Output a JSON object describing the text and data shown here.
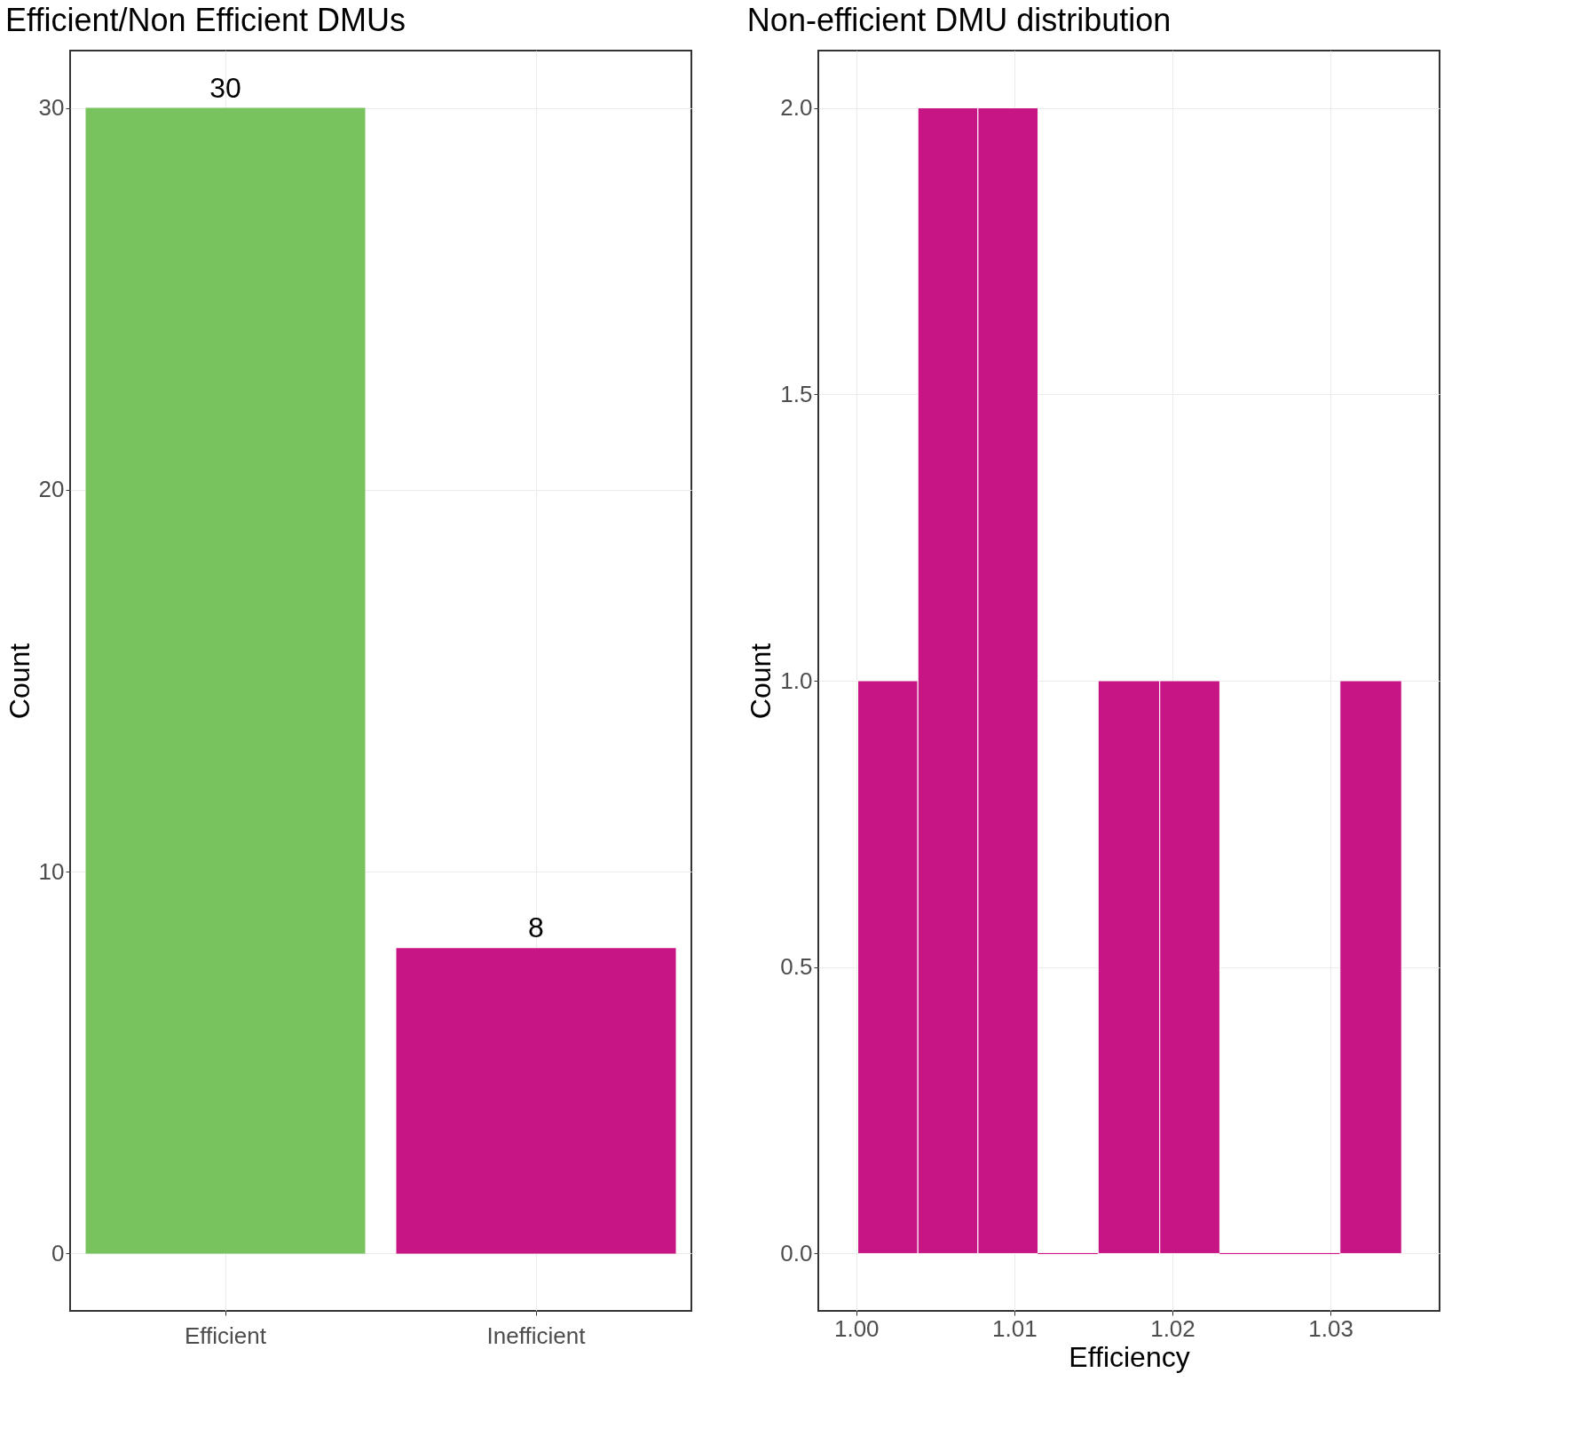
{
  "chart_data": [
    {
      "type": "bar",
      "title": "Efficient/Non Efficient DMUs",
      "ylabel": "Count",
      "categories": [
        "Efficient",
        "Inefficient"
      ],
      "values": [
        30,
        8
      ],
      "colors": [
        "#78c35e",
        "#c71585"
      ],
      "ylim": [
        -1.5,
        31.5
      ],
      "yticks": [
        0,
        10,
        20,
        30
      ],
      "data_labels": true,
      "grid": true
    },
    {
      "type": "histogram",
      "title": "Non-efficient DMU distribution",
      "xlabel": "Efficiency",
      "ylabel": "Count",
      "bins": [
        1.0001,
        1.0039,
        1.0077,
        1.0115,
        1.0153,
        1.0192,
        1.023,
        1.0268,
        1.0306,
        1.0345
      ],
      "values": [
        1,
        2,
        2,
        0,
        1,
        1,
        0,
        0,
        1
      ],
      "color": "#c71585",
      "xlim": [
        0.9976,
        1.0369
      ],
      "xticks": [
        {
          "value": 1,
          "label": "1.00"
        },
        1.01,
        1.02,
        1.03
      ],
      "ylim": [
        -0.1,
        2.1
      ],
      "yticks": [
        {
          "value": 0,
          "label": "0.0"
        },
        0.5,
        {
          "value": 1,
          "label": "1.0"
        },
        1.5,
        {
          "value": 2,
          "label": "2.0"
        }
      ],
      "grid": true
    }
  ]
}
